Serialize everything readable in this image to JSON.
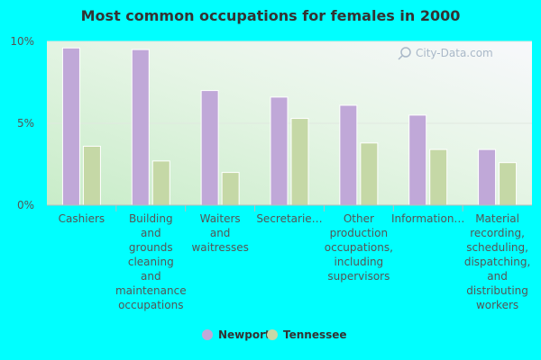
{
  "colors": {
    "page_background": "#00ffff",
    "series_newport": "#c0a8d8",
    "series_tennessee": "#c5d8a6"
  },
  "watermark": "City-Data.com",
  "chart_data": {
    "type": "bar",
    "title": "Most common occupations for females in 2000",
    "xlabel": "",
    "ylabel": "",
    "ylim": [
      0,
      10
    ],
    "yticks": [
      "0%",
      "5%",
      "10%"
    ],
    "categories": [
      [
        "Cashiers"
      ],
      [
        "Building",
        "and",
        "grounds",
        "cleaning",
        "and",
        "maintenance",
        "occupations"
      ],
      [
        "Waiters",
        "and",
        "waitresses"
      ],
      [
        "Secretarie…"
      ],
      [
        "Other",
        "production",
        "occupations,",
        "including",
        "supervisors"
      ],
      [
        "Information…"
      ],
      [
        "Material",
        "recording,",
        "scheduling,",
        "dispatching,",
        "and",
        "distributing",
        "workers"
      ]
    ],
    "series": [
      {
        "name": "Newport",
        "values": [
          9.6,
          9.5,
          7.0,
          6.6,
          6.1,
          5.5,
          3.4
        ]
      },
      {
        "name": "Tennessee",
        "values": [
          3.6,
          2.7,
          2.0,
          5.3,
          3.8,
          3.4,
          2.6
        ]
      }
    ],
    "legend_position": "bottom-center",
    "grid": true
  }
}
